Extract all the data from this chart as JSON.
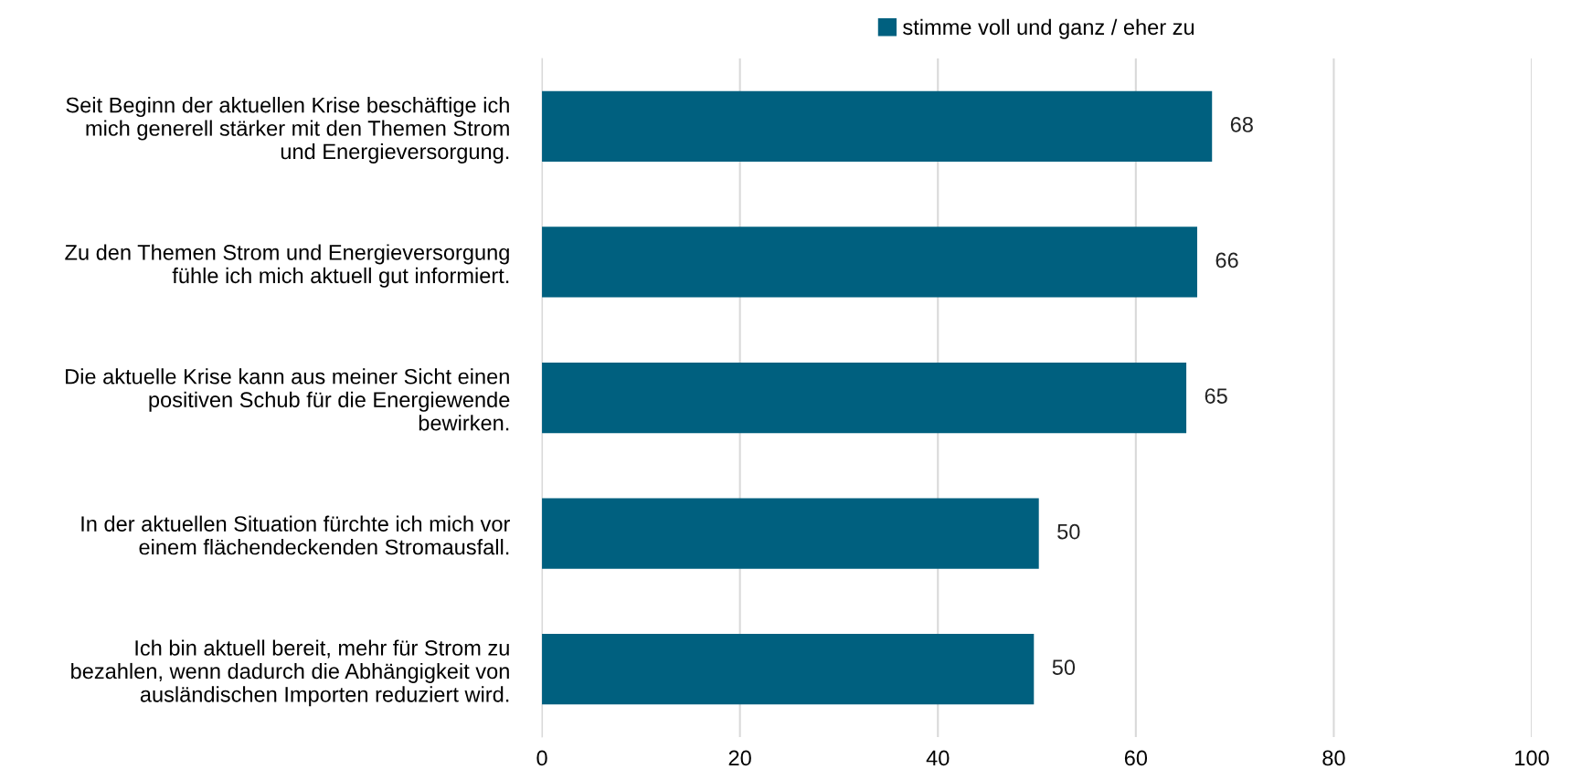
{
  "chart_data": {
    "type": "bar",
    "orientation": "horizontal",
    "categories": [
      "Seit Beginn der aktuellen Krise beschäftige ich\nmich generell stärker mit den Themen Strom\nund Energieversorgung.",
      "Zu den Themen Strom und Energieversorgung\nfühle ich mich aktuell gut informiert.",
      "Die aktuelle Krise kann aus meiner Sicht einen\npositiven Schub für die Energiewende\nbewirken.",
      "In der aktuellen Situation fürchte ich mich vor\neinem flächendeckenden Stromausfall.",
      "Ich bin aktuell bereit, mehr für Strom zu\nbezahlen, wenn dadurch die Abhängigkeit von\nausländischen Importen reduziert wird."
    ],
    "series": [
      {
        "name": "stimme voll und ganz / eher zu",
        "color": "#00607f",
        "values": [
          67.7,
          66.2,
          65.1,
          50.2,
          49.7
        ],
        "value_labels": [
          "68",
          "66",
          "65",
          "50",
          "50"
        ]
      }
    ],
    "xlim": [
      0,
      100
    ],
    "xticks": [
      0,
      20,
      40,
      60,
      80,
      100
    ],
    "grid": "x",
    "legend": "top"
  }
}
